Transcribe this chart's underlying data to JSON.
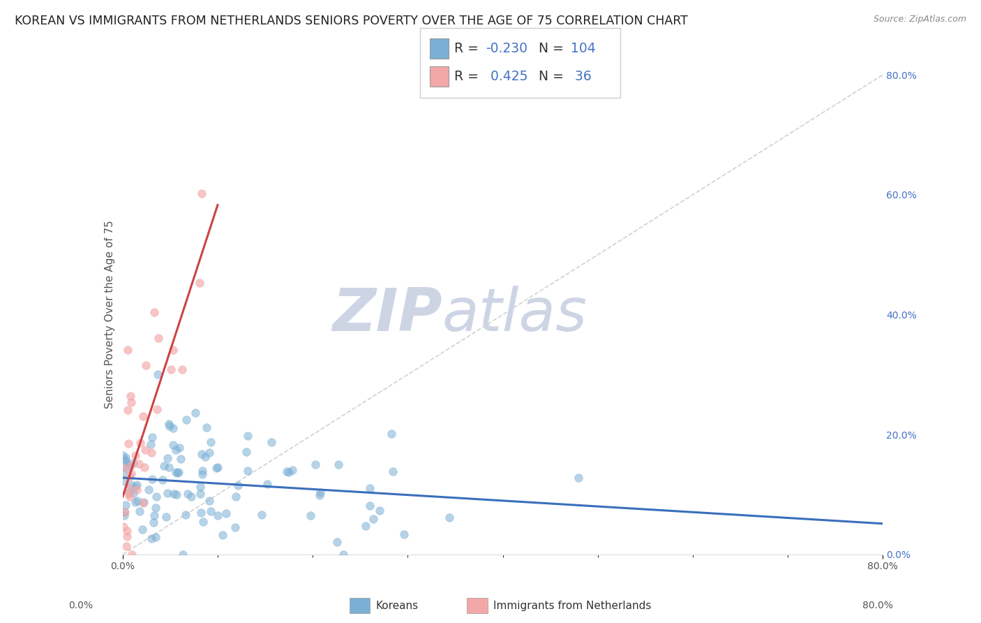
{
  "title": "KOREAN VS IMMIGRANTS FROM NETHERLANDS SENIORS POVERTY OVER THE AGE OF 75 CORRELATION CHART",
  "source": "Source: ZipAtlas.com",
  "ylabel": "Seniors Poverty Over the Age of 75",
  "xlim": [
    0.0,
    0.8
  ],
  "ylim": [
    0.0,
    0.8
  ],
  "xtick_positions": [
    0.0,
    0.8
  ],
  "xtick_labels": [
    "0.0%",
    "80.0%"
  ],
  "ytick_positions": [
    0.0,
    0.2,
    0.4,
    0.6,
    0.8
  ],
  "ytick_labels": [
    "0.0%",
    "20.0%",
    "40.0%",
    "60.0%",
    "80.0%"
  ],
  "korean_R": -0.23,
  "korean_N": 104,
  "netherlands_R": 0.425,
  "netherlands_N": 36,
  "blue_color": "#7bafd4",
  "pink_color": "#f4a7a7",
  "blue_line_color": "#3a6fbc",
  "pink_line_color": "#cc4444",
  "diag_line_color": "#cccccc",
  "legend_label_korean": "Koreans",
  "legend_label_netherlands": "Immigrants from Netherlands",
  "watermark_zip": "ZIP",
  "watermark_atlas": "atlas",
  "background_color": "#ffffff",
  "grid_color": "#cccccc",
  "title_fontsize": 12.5,
  "axis_label_fontsize": 11,
  "tick_fontsize": 10,
  "watermark_color": "#cdd5e5",
  "legend_value_color": "#4472c4",
  "legend_label_color": "#333333"
}
